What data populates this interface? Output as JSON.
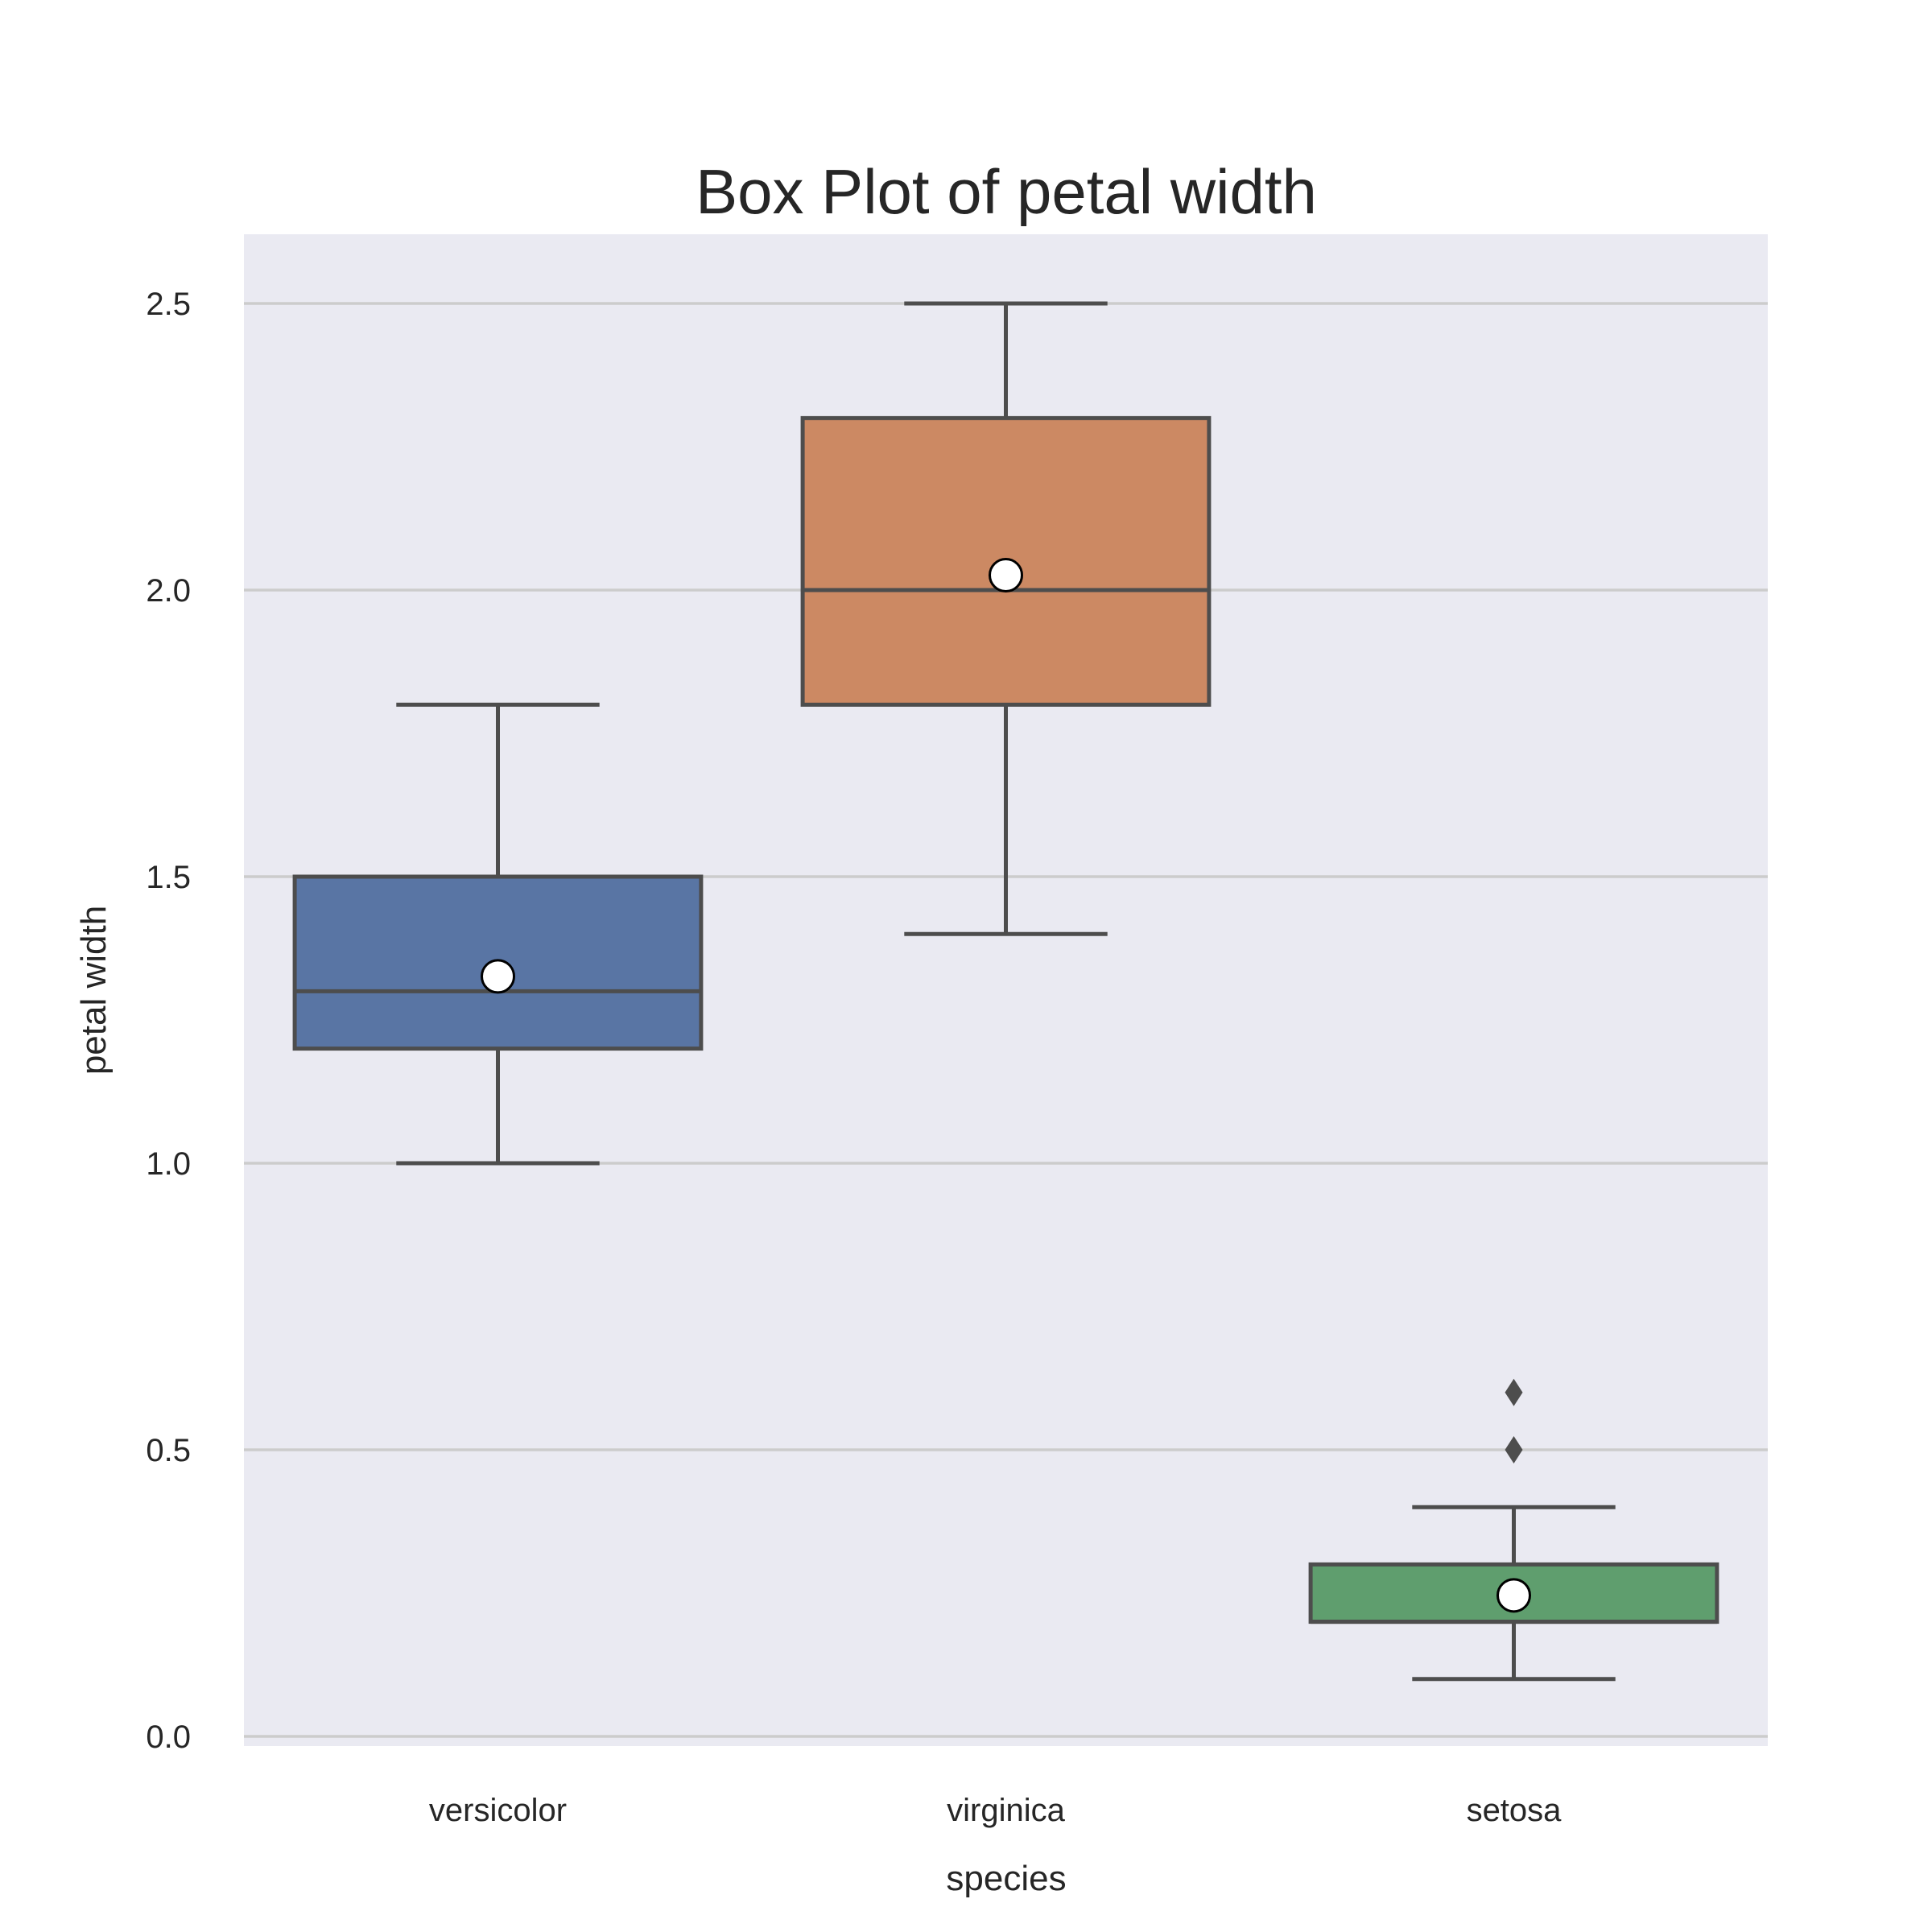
{
  "chart_data": {
    "type": "box",
    "title": "Box Plot of petal width",
    "xlabel": "species",
    "ylabel": "petal width",
    "ylim": [
      -0.04,
      2.62
    ],
    "yticks": [
      "0.0",
      "0.5",
      "1.0",
      "1.5",
      "2.0",
      "2.5"
    ],
    "ytick_values": [
      0.0,
      0.5,
      1.0,
      1.5,
      2.0,
      2.5
    ],
    "grid": true,
    "categories": [
      "versicolor",
      "virginica",
      "setosa"
    ],
    "boxes": [
      {
        "category": "versicolor",
        "whisker_low": 1.0,
        "q1": 1.2,
        "median": 1.3,
        "q3": 1.5,
        "whisker_high": 1.8,
        "mean": 1.326,
        "outliers": [],
        "color": "#5975a4"
      },
      {
        "category": "virginica",
        "whisker_low": 1.4,
        "q1": 1.8,
        "median": 2.0,
        "q3": 2.3,
        "whisker_high": 2.5,
        "mean": 2.026,
        "outliers": [],
        "color": "#cc8963"
      },
      {
        "category": "setosa",
        "whisker_low": 0.1,
        "q1": 0.2,
        "median": 0.2,
        "q3": 0.3,
        "whisker_high": 0.4,
        "mean": 0.246,
        "outliers": [
          0.5,
          0.6
        ],
        "color": "#5f9e6e"
      }
    ],
    "colors": {
      "plot_background": "#eaeaf2",
      "grid": "#cccccc",
      "box_edge": "#4d4d4d",
      "mean_fill": "#ffffff",
      "mean_edge": "#000000"
    }
  }
}
